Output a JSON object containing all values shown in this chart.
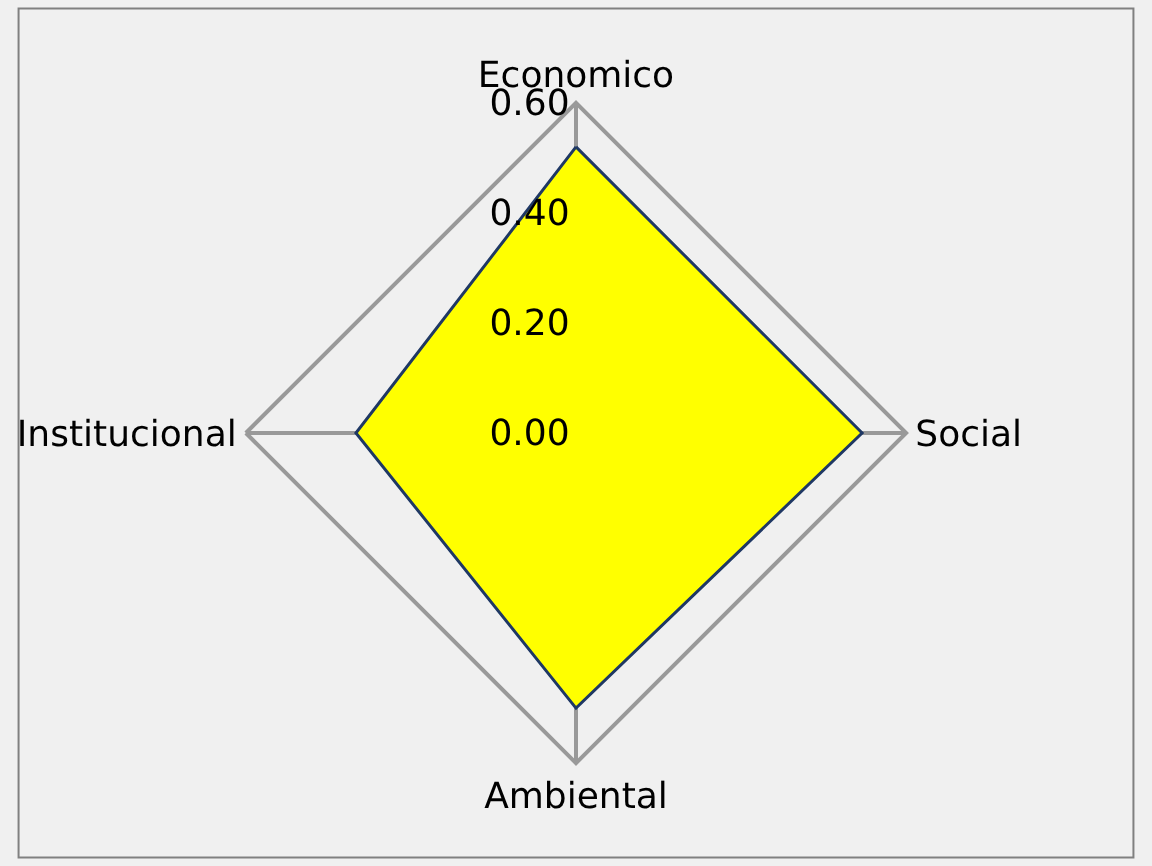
{
  "chart_data": {
    "type": "radar",
    "categories": [
      "Economico",
      "Social",
      "Ambiental",
      "Institucional"
    ],
    "series": [
      {
        "color": "#ffff00",
        "values": [
          0.52,
          0.52,
          0.5,
          0.4
        ]
      }
    ],
    "ylim": [
      0,
      0.6
    ],
    "yticks": [
      {
        "value": 0,
        "label": "0.00"
      },
      {
        "value": 0.2,
        "label": "0.20"
      },
      {
        "value": 0.4,
        "label": "0.40"
      },
      {
        "value": 0.6,
        "label": "0.60"
      }
    ],
    "grid": "x",
    "marker": "none"
  }
}
